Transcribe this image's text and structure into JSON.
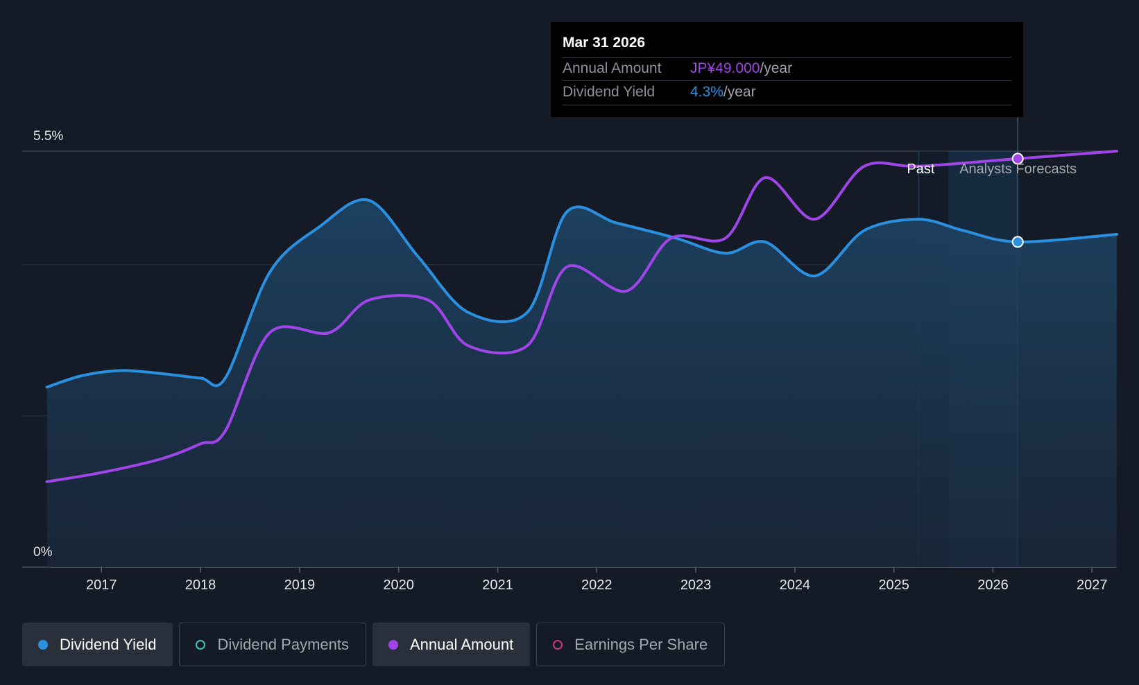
{
  "colors": {
    "background": "#151b26",
    "yield": "#2b90e0",
    "annual": "#a046e8",
    "payments": "#3fc6b8",
    "eps": "#c43d79",
    "grid": "#2b3340"
  },
  "tooltip": {
    "date": "Mar 31 2026",
    "annual_label": "Annual Amount",
    "annual_value": "JP¥49.000",
    "annual_unit": "/year",
    "yield_label": "Dividend Yield",
    "yield_value": "4.3%",
    "yield_unit": "/year"
  },
  "chart_data": {
    "type": "line",
    "title": "",
    "y_axis": {
      "labels": [
        "5.5%",
        "0%"
      ],
      "ylim": [
        0,
        5.5
      ],
      "unit": "%"
    },
    "x_axis": {
      "ticks": [
        "2017",
        "2018",
        "2019",
        "2020",
        "2021",
        "2022",
        "2023",
        "2024",
        "2025",
        "2026",
        "2027"
      ],
      "xlim": [
        2016.2,
        2027.25
      ]
    },
    "regions": {
      "past_label": "Past",
      "forecast_label": "Analysts Forecasts",
      "divider_x": 2025.25,
      "forecast_start_x": 2025.55,
      "cursor_x": 2026.25
    },
    "series": [
      {
        "name": "Dividend Yield",
        "unit": "%",
        "filled": true,
        "points": [
          [
            2016.45,
            2.38
          ],
          [
            2016.8,
            2.53
          ],
          [
            2017.2,
            2.6
          ],
          [
            2017.6,
            2.56
          ],
          [
            2018.0,
            2.5
          ],
          [
            2018.25,
            2.5
          ],
          [
            2018.7,
            3.9
          ],
          [
            2019.2,
            4.5
          ],
          [
            2019.7,
            4.85
          ],
          [
            2020.2,
            4.1
          ],
          [
            2020.7,
            3.37
          ],
          [
            2021.3,
            3.37
          ],
          [
            2021.7,
            4.7
          ],
          [
            2022.2,
            4.55
          ],
          [
            2022.8,
            4.35
          ],
          [
            2023.3,
            4.15
          ],
          [
            2023.7,
            4.3
          ],
          [
            2024.2,
            3.85
          ],
          [
            2024.7,
            4.45
          ],
          [
            2025.25,
            4.6
          ],
          [
            2025.7,
            4.45
          ],
          [
            2026.25,
            4.3
          ],
          [
            2027.25,
            4.4
          ]
        ]
      },
      {
        "name": "Annual Amount",
        "unit": "index",
        "filled": false,
        "points": [
          [
            2016.45,
            1.13
          ],
          [
            2017.0,
            1.25
          ],
          [
            2017.6,
            1.43
          ],
          [
            2018.0,
            1.63
          ],
          [
            2018.25,
            1.8
          ],
          [
            2018.7,
            3.1
          ],
          [
            2019.3,
            3.1
          ],
          [
            2019.7,
            3.53
          ],
          [
            2020.3,
            3.53
          ],
          [
            2020.7,
            2.93
          ],
          [
            2021.3,
            2.93
          ],
          [
            2021.7,
            3.97
          ],
          [
            2022.3,
            3.65
          ],
          [
            2022.75,
            4.35
          ],
          [
            2023.3,
            4.35
          ],
          [
            2023.7,
            5.15
          ],
          [
            2024.2,
            4.6
          ],
          [
            2024.7,
            5.3
          ],
          [
            2025.25,
            5.3
          ],
          [
            2026.25,
            5.4
          ],
          [
            2027.25,
            5.5
          ]
        ]
      }
    ]
  },
  "legend": [
    {
      "label": "Dividend Yield",
      "active": true,
      "filled": true,
      "color": "#2b90e0"
    },
    {
      "label": "Dividend Payments",
      "active": false,
      "filled": false,
      "color": "#3fc6b8"
    },
    {
      "label": "Annual Amount",
      "active": true,
      "filled": true,
      "color": "#a046e8"
    },
    {
      "label": "Earnings Per Share",
      "active": false,
      "filled": false,
      "color": "#c43d79"
    }
  ]
}
